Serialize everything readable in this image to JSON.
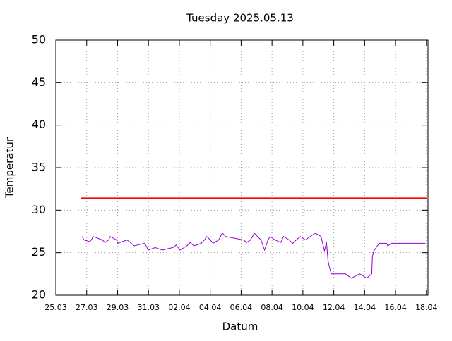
{
  "chart_data": {
    "type": "line",
    "title": "Tuesday 2025.05.13",
    "x_label": "Datum",
    "y_label": "Temperatur",
    "xlim": [
      0,
      24.1
    ],
    "ylim": [
      20,
      50
    ],
    "xticks": [
      {
        "value": 0,
        "label": "25.03"
      },
      {
        "value": 2,
        "label": "27.03"
      },
      {
        "value": 4,
        "label": "29.03"
      },
      {
        "value": 6,
        "label": "31.03"
      },
      {
        "value": 8,
        "label": "02.04"
      },
      {
        "value": 10,
        "label": "04.04"
      },
      {
        "value": 12,
        "label": "06.04"
      },
      {
        "value": 14,
        "label": "08.04"
      },
      {
        "value": 16,
        "label": "10.04"
      },
      {
        "value": 18,
        "label": "12.04"
      },
      {
        "value": 20,
        "label": "14.04"
      },
      {
        "value": 22,
        "label": "16.04"
      },
      {
        "value": 24,
        "label": "18.04"
      }
    ],
    "yticks": [
      20,
      25,
      30,
      35,
      40,
      45,
      50
    ],
    "grid": true,
    "series": [
      {
        "color": "#9400d3",
        "x": [
          1.69,
          1.83,
          2.19,
          2.3,
          2.42,
          3.01,
          3.2,
          3.42,
          3.52,
          3.93,
          4.02,
          4.61,
          4.89,
          5.07,
          5.75,
          5.85,
          5.98,
          6.44,
          6.89,
          7.58,
          7.8,
          8.04,
          8.49,
          8.7,
          8.95,
          9.41,
          9.63,
          9.77,
          10.0,
          10.18,
          10.55,
          10.78,
          11.0,
          12.15,
          12.37,
          12.6,
          12.74,
          12.85,
          13.06,
          13.29,
          13.52,
          13.74,
          13.88,
          14.2,
          14.57,
          14.75,
          15.11,
          15.34,
          15.57,
          15.84,
          16.16,
          16.48,
          16.8,
          17.17,
          17.4,
          17.53,
          17.63,
          17.76,
          17.85,
          18.77,
          19.13,
          19.68,
          20.14,
          20.46,
          20.5,
          20.59,
          20.82,
          20.96,
          21.42,
          21.5,
          21.74,
          23.93
        ],
        "values": [
          26.9,
          26.5,
          26.3,
          26.5,
          26.9,
          26.5,
          26.2,
          26.5,
          26.9,
          26.5,
          26.1,
          26.5,
          26.1,
          25.8,
          26.1,
          25.8,
          25.3,
          25.6,
          25.3,
          25.6,
          25.9,
          25.3,
          25.8,
          26.2,
          25.8,
          26.1,
          26.5,
          26.9,
          26.5,
          26.1,
          26.5,
          27.3,
          26.9,
          26.5,
          26.2,
          26.5,
          26.9,
          27.3,
          26.9,
          26.5,
          25.3,
          26.5,
          26.9,
          26.5,
          26.2,
          26.9,
          26.5,
          26.1,
          26.5,
          26.9,
          26.5,
          26.9,
          27.3,
          26.9,
          25.2,
          26.3,
          24.0,
          23.0,
          22.5,
          22.5,
          22.0,
          22.5,
          22.0,
          22.5,
          24.5,
          25.2,
          25.8,
          26.1,
          26.1,
          25.8,
          26.1,
          26.1
        ]
      },
      {
        "color": "#ff0000",
        "x": [
          1.65,
          24.0
        ],
        "values": [
          31.4,
          31.4
        ]
      }
    ]
  }
}
